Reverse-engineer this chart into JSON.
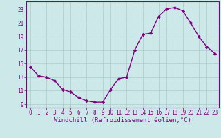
{
  "x": [
    0,
    1,
    2,
    3,
    4,
    5,
    6,
    7,
    8,
    9,
    10,
    11,
    12,
    13,
    14,
    15,
    16,
    17,
    18,
    19,
    20,
    21,
    22,
    23
  ],
  "y": [
    14.5,
    13.2,
    13.0,
    12.5,
    11.2,
    10.8,
    10.0,
    9.5,
    9.3,
    9.3,
    11.2,
    12.8,
    13.0,
    17.0,
    19.3,
    19.5,
    22.0,
    23.1,
    23.3,
    22.8,
    21.0,
    19.0,
    17.5,
    16.5
  ],
  "line_color": "#7f007f",
  "marker": "D",
  "marker_size": 2.2,
  "bg_color": "#cce8e8",
  "grid_color": "#aacccc",
  "xlabel": "Windchill (Refroidissement éolien,°C)",
  "xlabel_color": "#7f007f",
  "ylabel_ticks": [
    9,
    11,
    13,
    15,
    17,
    19,
    21,
    23
  ],
  "xlim": [
    -0.5,
    23.5
  ],
  "ylim": [
    8.5,
    24.2
  ],
  "xticks": [
    0,
    1,
    2,
    3,
    4,
    5,
    6,
    7,
    8,
    9,
    10,
    11,
    12,
    13,
    14,
    15,
    16,
    17,
    18,
    19,
    20,
    21,
    22,
    23
  ],
  "tick_color": "#7f007f",
  "tick_fontsize": 5.5,
  "xlabel_fontsize": 6.5,
  "spine_color": "#7f007f",
  "linewidth": 1.0
}
